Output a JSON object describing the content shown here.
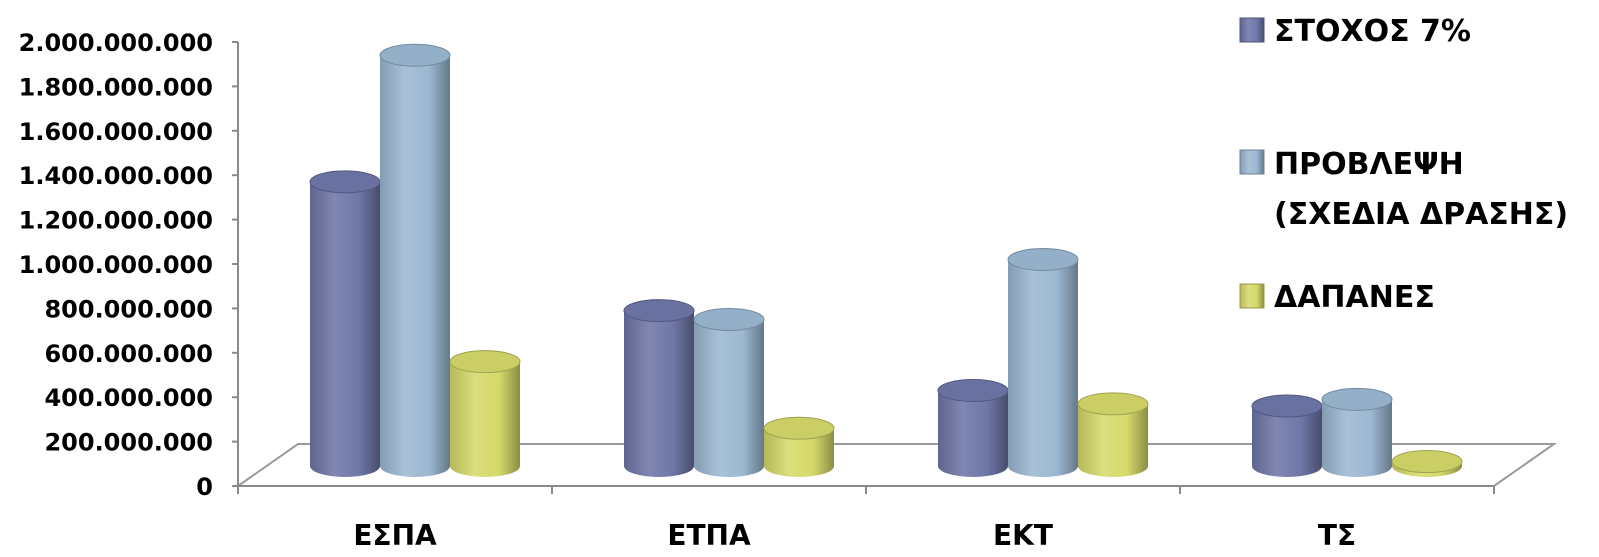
{
  "chart_data": {
    "type": "bar",
    "style": "3d-cylinder",
    "categories": [
      "ΕΣΠΑ",
      "ΕΤΠΑ",
      "ΕΚΤ",
      "ΤΣ"
    ],
    "ylim": [
      0,
      2000000000
    ],
    "yticks": [
      0,
      200000000,
      400000000,
      600000000,
      800000000,
      1000000000,
      1200000000,
      1400000000,
      1600000000,
      1800000000,
      2000000000
    ],
    "ytick_labels": [
      "0",
      "200.000.000",
      "400.000.000",
      "600.000.000",
      "800.000.000",
      "1.000.000.000",
      "1.200.000.000",
      "1.400.000.000",
      "1.600.000.000",
      "1.800.000.000",
      "2.000.000.000"
    ],
    "grid": false,
    "legend_position": "right",
    "series": [
      {
        "name": "ΣΤΟΧΟΣ 7%",
        "values": [
          1280000000,
          700000000,
          340000000,
          270000000
        ],
        "color": "#6f77a8"
      },
      {
        "name": "ΠΡΟΒΛΕΨΗ (ΣΧΕΔΙΑ ΔΡΑΣΗΣ)",
        "name_lines": [
          "ΠΡΟΒΛΕΨΗ",
          "(ΣΧΕΔΙΑ ΔΡΑΣΗΣ)"
        ],
        "values": [
          1850000000,
          660000000,
          930000000,
          300000000
        ],
        "color": "#9cb8d2"
      },
      {
        "name": "ΔΑΠΑΝΕΣ",
        "values": [
          470000000,
          170000000,
          280000000,
          20000000
        ],
        "color": "#d6d96a"
      }
    ]
  }
}
